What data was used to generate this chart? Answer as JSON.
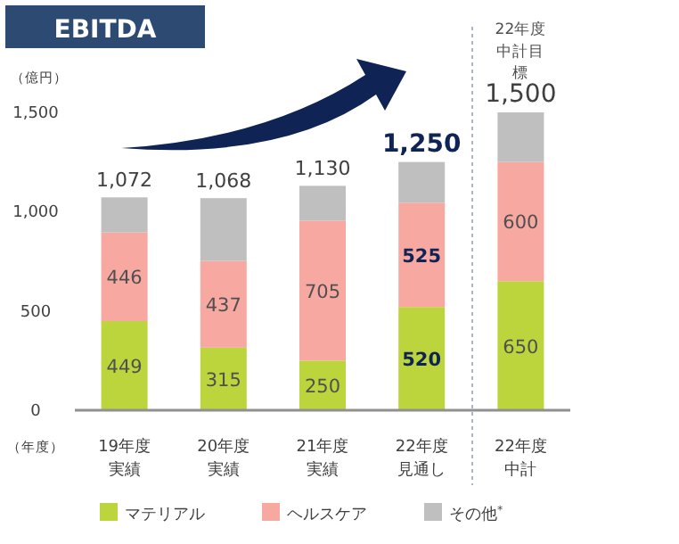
{
  "chart_data": {
    "type": "bar",
    "stacked": true,
    "title": "EBITDA",
    "ylabel": "（億円）",
    "xlabel": "（年度）",
    "categories": [
      "19年度実績",
      "20年度実績",
      "21年度実績",
      "22年度見通し",
      "22年度中計"
    ],
    "series": [
      {
        "name": "マテリアル",
        "color": "#bcd53c",
        "values": [
          449,
          315,
          250,
          520,
          650
        ],
        "value_labels": [
          "449",
          "315",
          "250",
          "520",
          "650"
        ]
      },
      {
        "name": "ヘルスケア",
        "color": "#f7a8a0",
        "values": [
          446,
          437,
          705,
          525,
          600
        ],
        "value_labels": [
          "446",
          "437",
          "705",
          "525",
          "600"
        ]
      },
      {
        "name": "その他$^{*}$",
        "color": "#bfbfbf",
        "values": [
          177,
          316,
          175,
          205,
          250
        ]
      }
    ],
    "totals": [
      "1,072",
      "1,068",
      "1,130",
      "1,250",
      "1,500"
    ],
    "ylim": [
      0,
      1500
    ],
    "yticks": [
      0,
      500,
      {
        "value": 1000,
        "label": "1,000"
      },
      {
        "value": 1500,
        "label": "1,500"
      }
    ],
    "annotations": [
      "22年度中計目標"
    ],
    "legend": "bottom",
    "grid": false
  }
}
